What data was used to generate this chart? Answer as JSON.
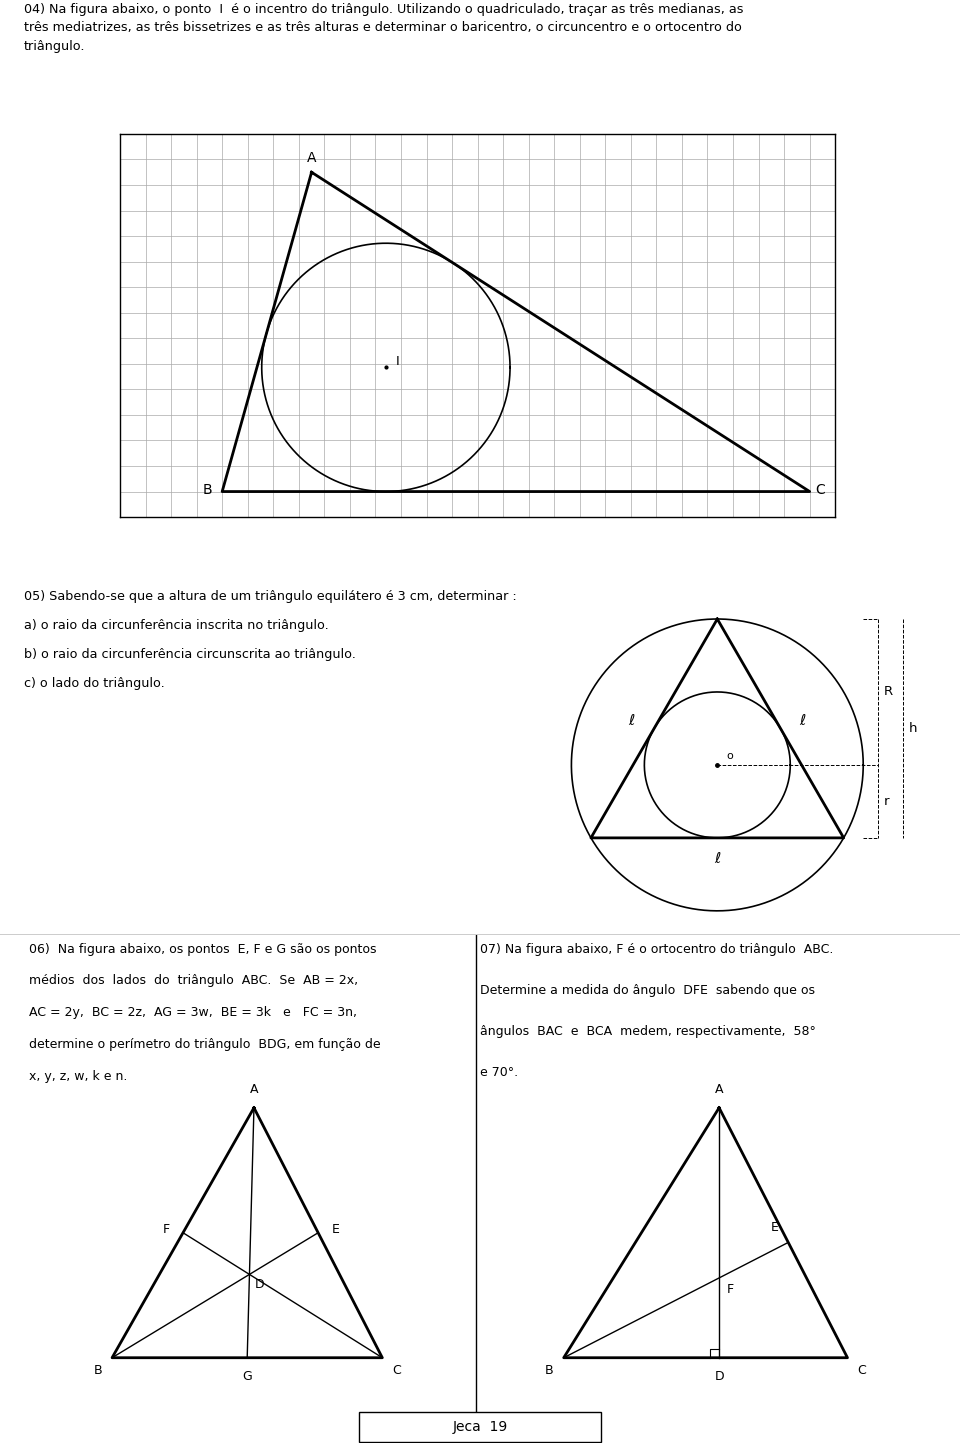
{
  "page_title": "Jeca  19",
  "background_color": "#ffffff",
  "q04_text_line1": "04) Na figura abaixo, o ponto  I  é o incentro do triângulo. Utilizando o quadriculado, traçar as três medianas, as",
  "q04_text_line2": "três mediatrizes, as três bissetrizes e as três alturas e determinar o baricentro, o circuncentro e o ortocentro do",
  "q04_text_line3": "triângulo.",
  "q05_text_line1": "05) Sabendo-se que a altura de um triângulo equilátero é 3 cm, determinar :",
  "q05_text_line2": "a) o raio da circunferência inscrita no triângulo.",
  "q05_text_line3": "b) o raio da circunferência circunscrita ao triângulo.",
  "q05_text_line4": "c) o lado do triângulo.",
  "q06_text_line1": "06)  Na figura abaixo, os pontos  E, F e G são os pontos",
  "q06_text_line2": "médios  dos  lados  do  triângulo  ABC.  Se  AB = 2x,",
  "q06_text_line3": "AC = 2y,  BC = 2z,  AG = 3w,  BE = 3k   e   FC = 3n,",
  "q06_text_line4": "determine o perímetro do triângulo  BDG, em função de",
  "q06_text_line5": "x, y, z, w, k e n.",
  "q07_text_line1": "07) Na figura abaixo, F é o ortocentro do triângulo  ABC.",
  "q07_text_line2": "Determine a medida do ângulo  DFE  sabendo que os",
  "q07_text_line3": "ângulos  BAC  e  BCA  medem, respectivamente,  58°",
  "q07_text_line4": "e 70°."
}
